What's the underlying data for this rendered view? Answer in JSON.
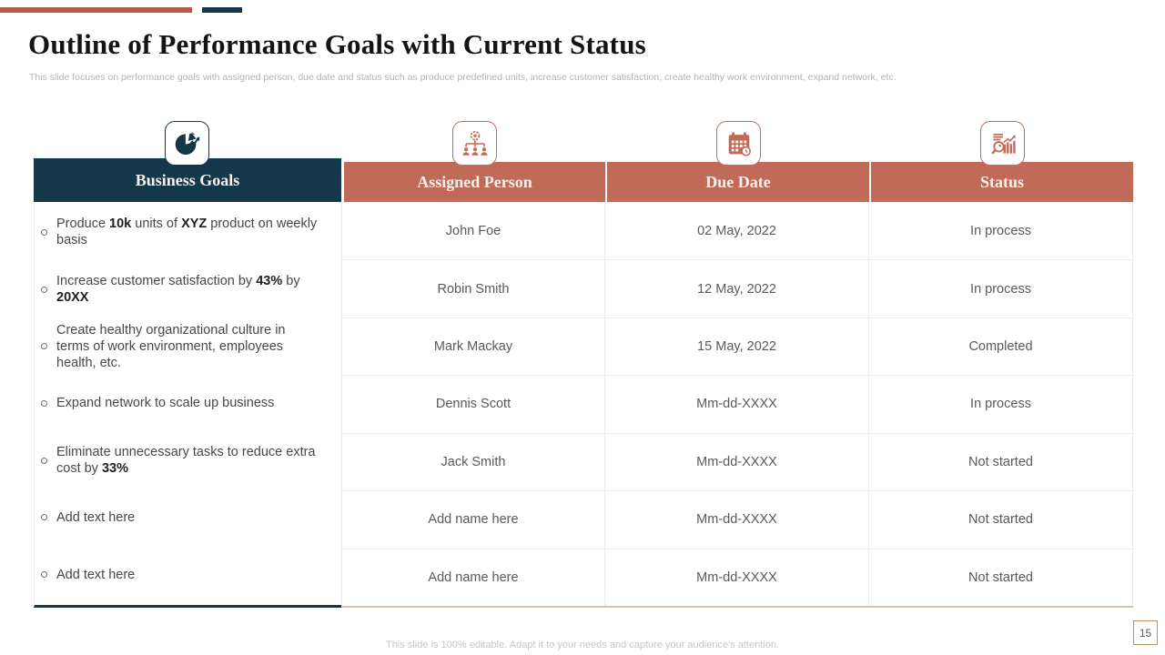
{
  "colors": {
    "sienna_header": "#c26a58",
    "sienna_bar": "#b25c49",
    "navy": "#14374a",
    "row_text": "#595959",
    "light_border": "#ececec",
    "table_bottom_tan": "#dcc0ae",
    "page_box_border": "#b5916f"
  },
  "title": "Outline of Performance Goals with Current Status",
  "subtitle": "This slide focuses on performance goals with assigned person, due date and status such as produce predefined units, increase customer satisfaction, create healthy work environment, expand network, etc.",
  "table": {
    "columns": [
      {
        "label": "Business Goals",
        "icon": "pie-chart-dollar-icon"
      },
      {
        "label": "Assigned Person",
        "icon": "org-chart-people-icon"
      },
      {
        "label": "Due Date",
        "icon": "calendar-clock-icon"
      },
      {
        "label": "Status",
        "icon": "magnifier-bar-chart-icon"
      }
    ],
    "goals": [
      "Produce **10k** units of **XYZ** product on weekly basis",
      "Increase customer satisfaction by **43%** by **20XX**",
      "Create healthy organizational culture in terms of work environment, employees health, etc.",
      "Expand network to scale up business",
      "Eliminate unnecessary tasks to reduce extra cost by **33%**",
      "Add text here",
      "Add text here"
    ],
    "rows": [
      {
        "person": "John Foe",
        "due_date": "02 May, 2022",
        "status": "In process"
      },
      {
        "person": "Robin Smith",
        "due_date": "12 May, 2022",
        "status": "In process"
      },
      {
        "person": "Mark Mackay",
        "due_date": "15 May, 2022",
        "status": "Completed"
      },
      {
        "person": "Dennis Scott",
        "due_date": "Mm-dd-XXXX",
        "status": "In process"
      },
      {
        "person": "Jack Smith",
        "due_date": "Mm-dd-XXXX",
        "status": "Not started"
      },
      {
        "person": "Add name here",
        "due_date": "Mm-dd-XXXX",
        "status": "Not started"
      },
      {
        "person": "Add name here",
        "due_date": "Mm-dd-XXXX",
        "status": "Not started"
      }
    ]
  },
  "footer": {
    "note": "This slide is 100% editable.  Adapt it to your needs and capture your audience's attention.",
    "page_number": "15"
  }
}
